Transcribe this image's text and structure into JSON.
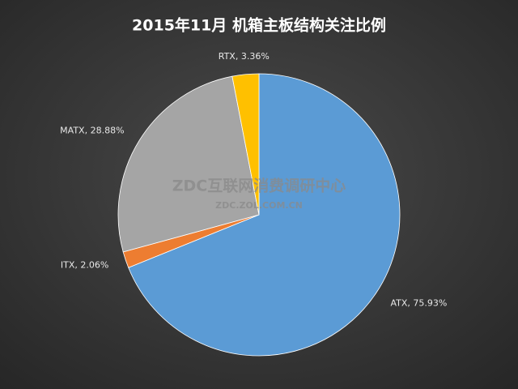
{
  "chart_data": {
    "type": "pie",
    "title": "2015年11月  机箱主板结构关注比例",
    "watermark": "ZDC互联网消费调研中心",
    "watermark_url": "ZDC.ZOL.COM.CN",
    "categories": [
      "ATX",
      "ITX",
      "MATX",
      "RTX"
    ],
    "values": [
      75.93,
      2.06,
      28.88,
      3.36
    ],
    "value_labels": [
      "ATX, 75.93%",
      "ITX, 2.06%",
      "MATX, 28.88%",
      "RTX, 3.36%"
    ],
    "colors": [
      "#5b9bd5",
      "#ed7d31",
      "#a5a5a5",
      "#ffc000"
    ]
  }
}
